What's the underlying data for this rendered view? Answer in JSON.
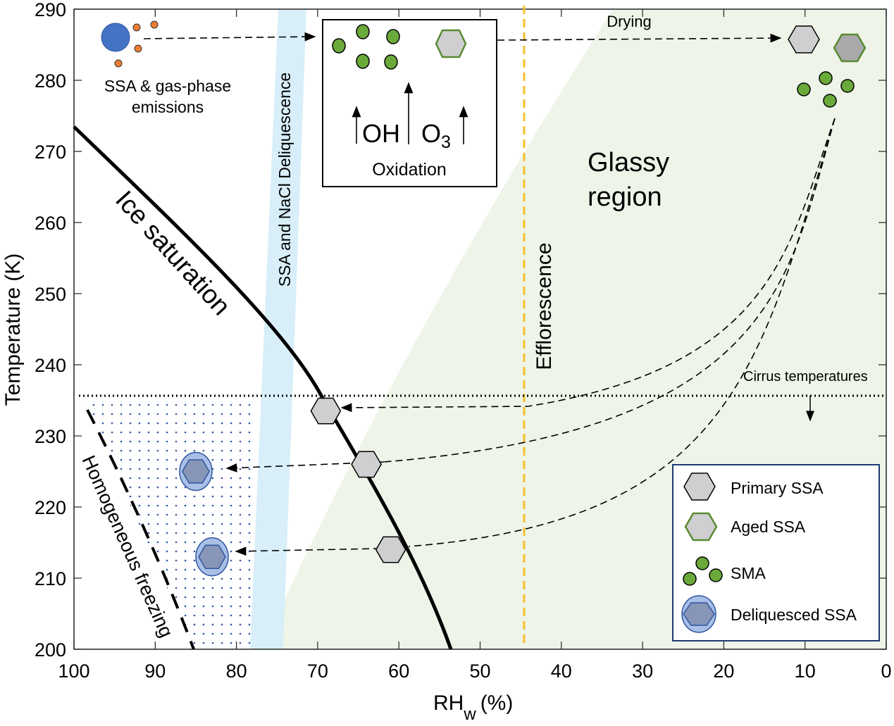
{
  "chart_data": {
    "type": "diagram",
    "xlabel": "RH",
    "xlabel_sub": "w",
    "xlabel_unit": "(%)",
    "ylabel": "Temperature (K)",
    "xlim": [
      100,
      0
    ],
    "ylim": [
      200,
      290
    ],
    "x_ticks": [
      "100",
      "90",
      "80",
      "70",
      "60",
      "50",
      "40",
      "30",
      "20",
      "10",
      "0"
    ],
    "y_ticks": [
      "290",
      "280",
      "270",
      "260",
      "250",
      "240",
      "230",
      "220",
      "210",
      "200"
    ],
    "efflorescence_rh": 45,
    "cirrus_temperature": 235.5,
    "primary_ssa_points": [
      {
        "rh": 69,
        "t": 233.5
      },
      {
        "rh": 64,
        "t": 226
      },
      {
        "rh": 61,
        "t": 214
      }
    ],
    "deliquesced_ssa_points": [
      {
        "rh": 85,
        "t": 225
      },
      {
        "rh": 83,
        "t": 213
      }
    ]
  },
  "labels": {
    "emissions_line1": "SSA & gas-phase",
    "emissions_line2": "emissions",
    "deliquescence": "SSA and NaCl Deliquescence",
    "oh": "OH",
    "o3": "O",
    "o3_sub": "3",
    "oxidation": "Oxidation",
    "drying": "Drying",
    "glassy_line1": "Glassy",
    "glassy_line2": "region",
    "efflorescence": "Efflorescence",
    "ice_saturation": "Ice saturation",
    "homogeneous_freezing": "Homogeneous freezing",
    "cirrus": "Cirrus temperatures"
  },
  "legend": {
    "items": [
      "Primary SSA",
      "Aged SSA",
      "SMA",
      "Deliquesced SSA"
    ]
  },
  "colors": {
    "glassy": "#eef5e8",
    "deliquescence_band": "#d6eef9",
    "efflorescence": "#f5c02a",
    "sma_green": "#6aaa3a",
    "ssa_grey": "#cfcfd1",
    "deliquesced_blue": "#a9bfe6",
    "emission_blue": "#4472c4",
    "emission_orange": "#ed7d31"
  }
}
